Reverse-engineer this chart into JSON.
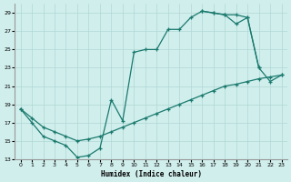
{
  "xlabel": "Humidex (Indice chaleur)",
  "background_color": "#d0eeec",
  "grid_color": "#afd8d5",
  "line_color": "#1a7a6e",
  "xlim": [
    -0.5,
    23.5
  ],
  "ylim": [
    13,
    30
  ],
  "yticks": [
    13,
    15,
    17,
    19,
    21,
    23,
    25,
    27,
    29
  ],
  "xticks": [
    0,
    1,
    2,
    3,
    4,
    5,
    6,
    7,
    8,
    9,
    10,
    11,
    12,
    13,
    14,
    15,
    16,
    17,
    18,
    19,
    20,
    21,
    22,
    23
  ],
  "line_zigzag_x": [
    0,
    1,
    2,
    3,
    4,
    5,
    6,
    7,
    8,
    9,
    10,
    11,
    12,
    13,
    14,
    15,
    16,
    17,
    18,
    19,
    20,
    21
  ],
  "line_zigzag_y": [
    18.5,
    17.0,
    15.5,
    15.0,
    14.5,
    13.2,
    13.4,
    14.2,
    19.5,
    17.2,
    24.7,
    25.0,
    25.0,
    27.2,
    27.2,
    28.5,
    29.2,
    29.0,
    28.8,
    27.8,
    28.5,
    23.0
  ],
  "line_diagonal_x": [
    0,
    1,
    2,
    3,
    4,
    5,
    6,
    7,
    8,
    9,
    10,
    11,
    12,
    13,
    14,
    15,
    16,
    17,
    18,
    19,
    20,
    21,
    22,
    23
  ],
  "line_diagonal_y": [
    18.5,
    17.5,
    16.5,
    16.0,
    15.5,
    15.0,
    15.2,
    15.5,
    16.0,
    16.5,
    17.0,
    17.5,
    18.0,
    18.5,
    19.0,
    19.5,
    20.0,
    20.5,
    21.0,
    21.2,
    21.5,
    21.8,
    22.0,
    22.2
  ],
  "line_top_x": [
    16,
    17,
    18,
    19,
    20,
    21,
    22,
    23
  ],
  "line_top_y": [
    29.2,
    29.0,
    28.8,
    28.8,
    28.5,
    23.0,
    21.5,
    22.2
  ]
}
